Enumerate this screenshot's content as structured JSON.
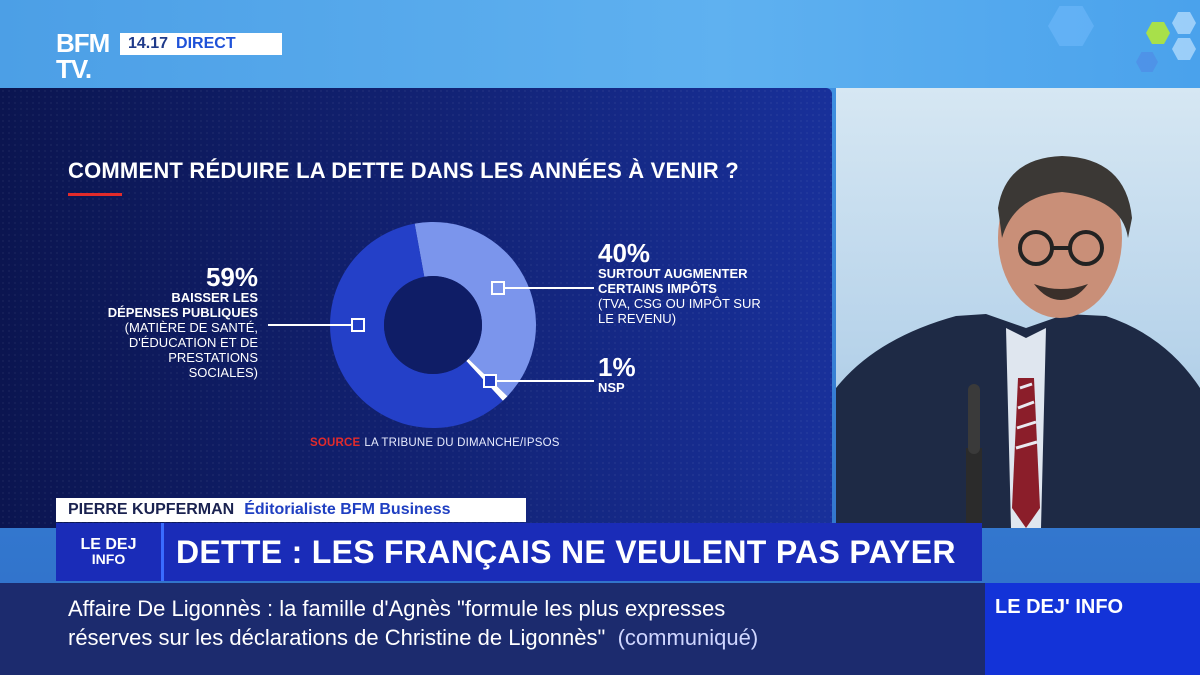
{
  "channel": {
    "logo_line1": "BFM",
    "logo_line2": "TV.",
    "time": "14.17",
    "status": "DIRECT"
  },
  "graphic": {
    "question": "COMMENT RÉDUIRE LA DETTE DANS LES ANNÉES À VENIR ?",
    "left": {
      "pct": "59%",
      "head": [
        "BAISSER LES",
        "DÉPENSES PUBLIQUES"
      ],
      "sub": [
        "(MATIÈRE DE SANTÉ,",
        "D'ÉDUCATION ET DE",
        "PRESTATIONS",
        "SOCIALES)"
      ]
    },
    "right": {
      "pct": "40%",
      "head": [
        "SURTOUT AUGMENTER",
        "CERTAINS IMPÔTS"
      ],
      "sub": [
        "(TVA, CSG OU IMPÔT SUR",
        "LE REVENU)"
      ]
    },
    "nsp": {
      "pct": "1%",
      "head": "NSP"
    },
    "source_label": "SOURCE",
    "source_text": "LA TRIBUNE DU DIMANCHE/IPSOS"
  },
  "chart_data": {
    "type": "pie",
    "title": "COMMENT RÉDUIRE LA DETTE DANS LES ANNÉES À VENIR ?",
    "categories": [
      "BAISSER LES DÉPENSES PUBLIQUES",
      "SURTOUT AUGMENTER CERTAINS IMPÔTS",
      "NSP"
    ],
    "values": [
      59,
      40,
      1
    ],
    "colors": [
      "#2440c8",
      "#7b95ec",
      "#ffffff"
    ]
  },
  "strap": {
    "name": "PIERRE KUPFERMAN",
    "role": "Éditorialiste BFM Business"
  },
  "headline": {
    "show_logo_line1": "LE DEJ",
    "show_logo_line2": "INFO",
    "text": "DETTE : LES FRANÇAIS NE VEULENT PAS PAYER"
  },
  "ticker": {
    "topic": "Affaire De Ligonnès",
    "sep": " : ",
    "line1": "la famille d'Agnès \"formule les plus expresses",
    "line2": "réserves sur les déclarations de Christine de Ligonnès\"",
    "line2_paren": "(communiqué)",
    "show_name": "LE DEJ' INFO"
  },
  "colors": {
    "panel_bg": "#11206e",
    "accent_red": "#e32b2b",
    "headline_bar": "#1a2cb8",
    "ticker_bg": "#1c2b6e",
    "show_box": "#1333d8"
  }
}
